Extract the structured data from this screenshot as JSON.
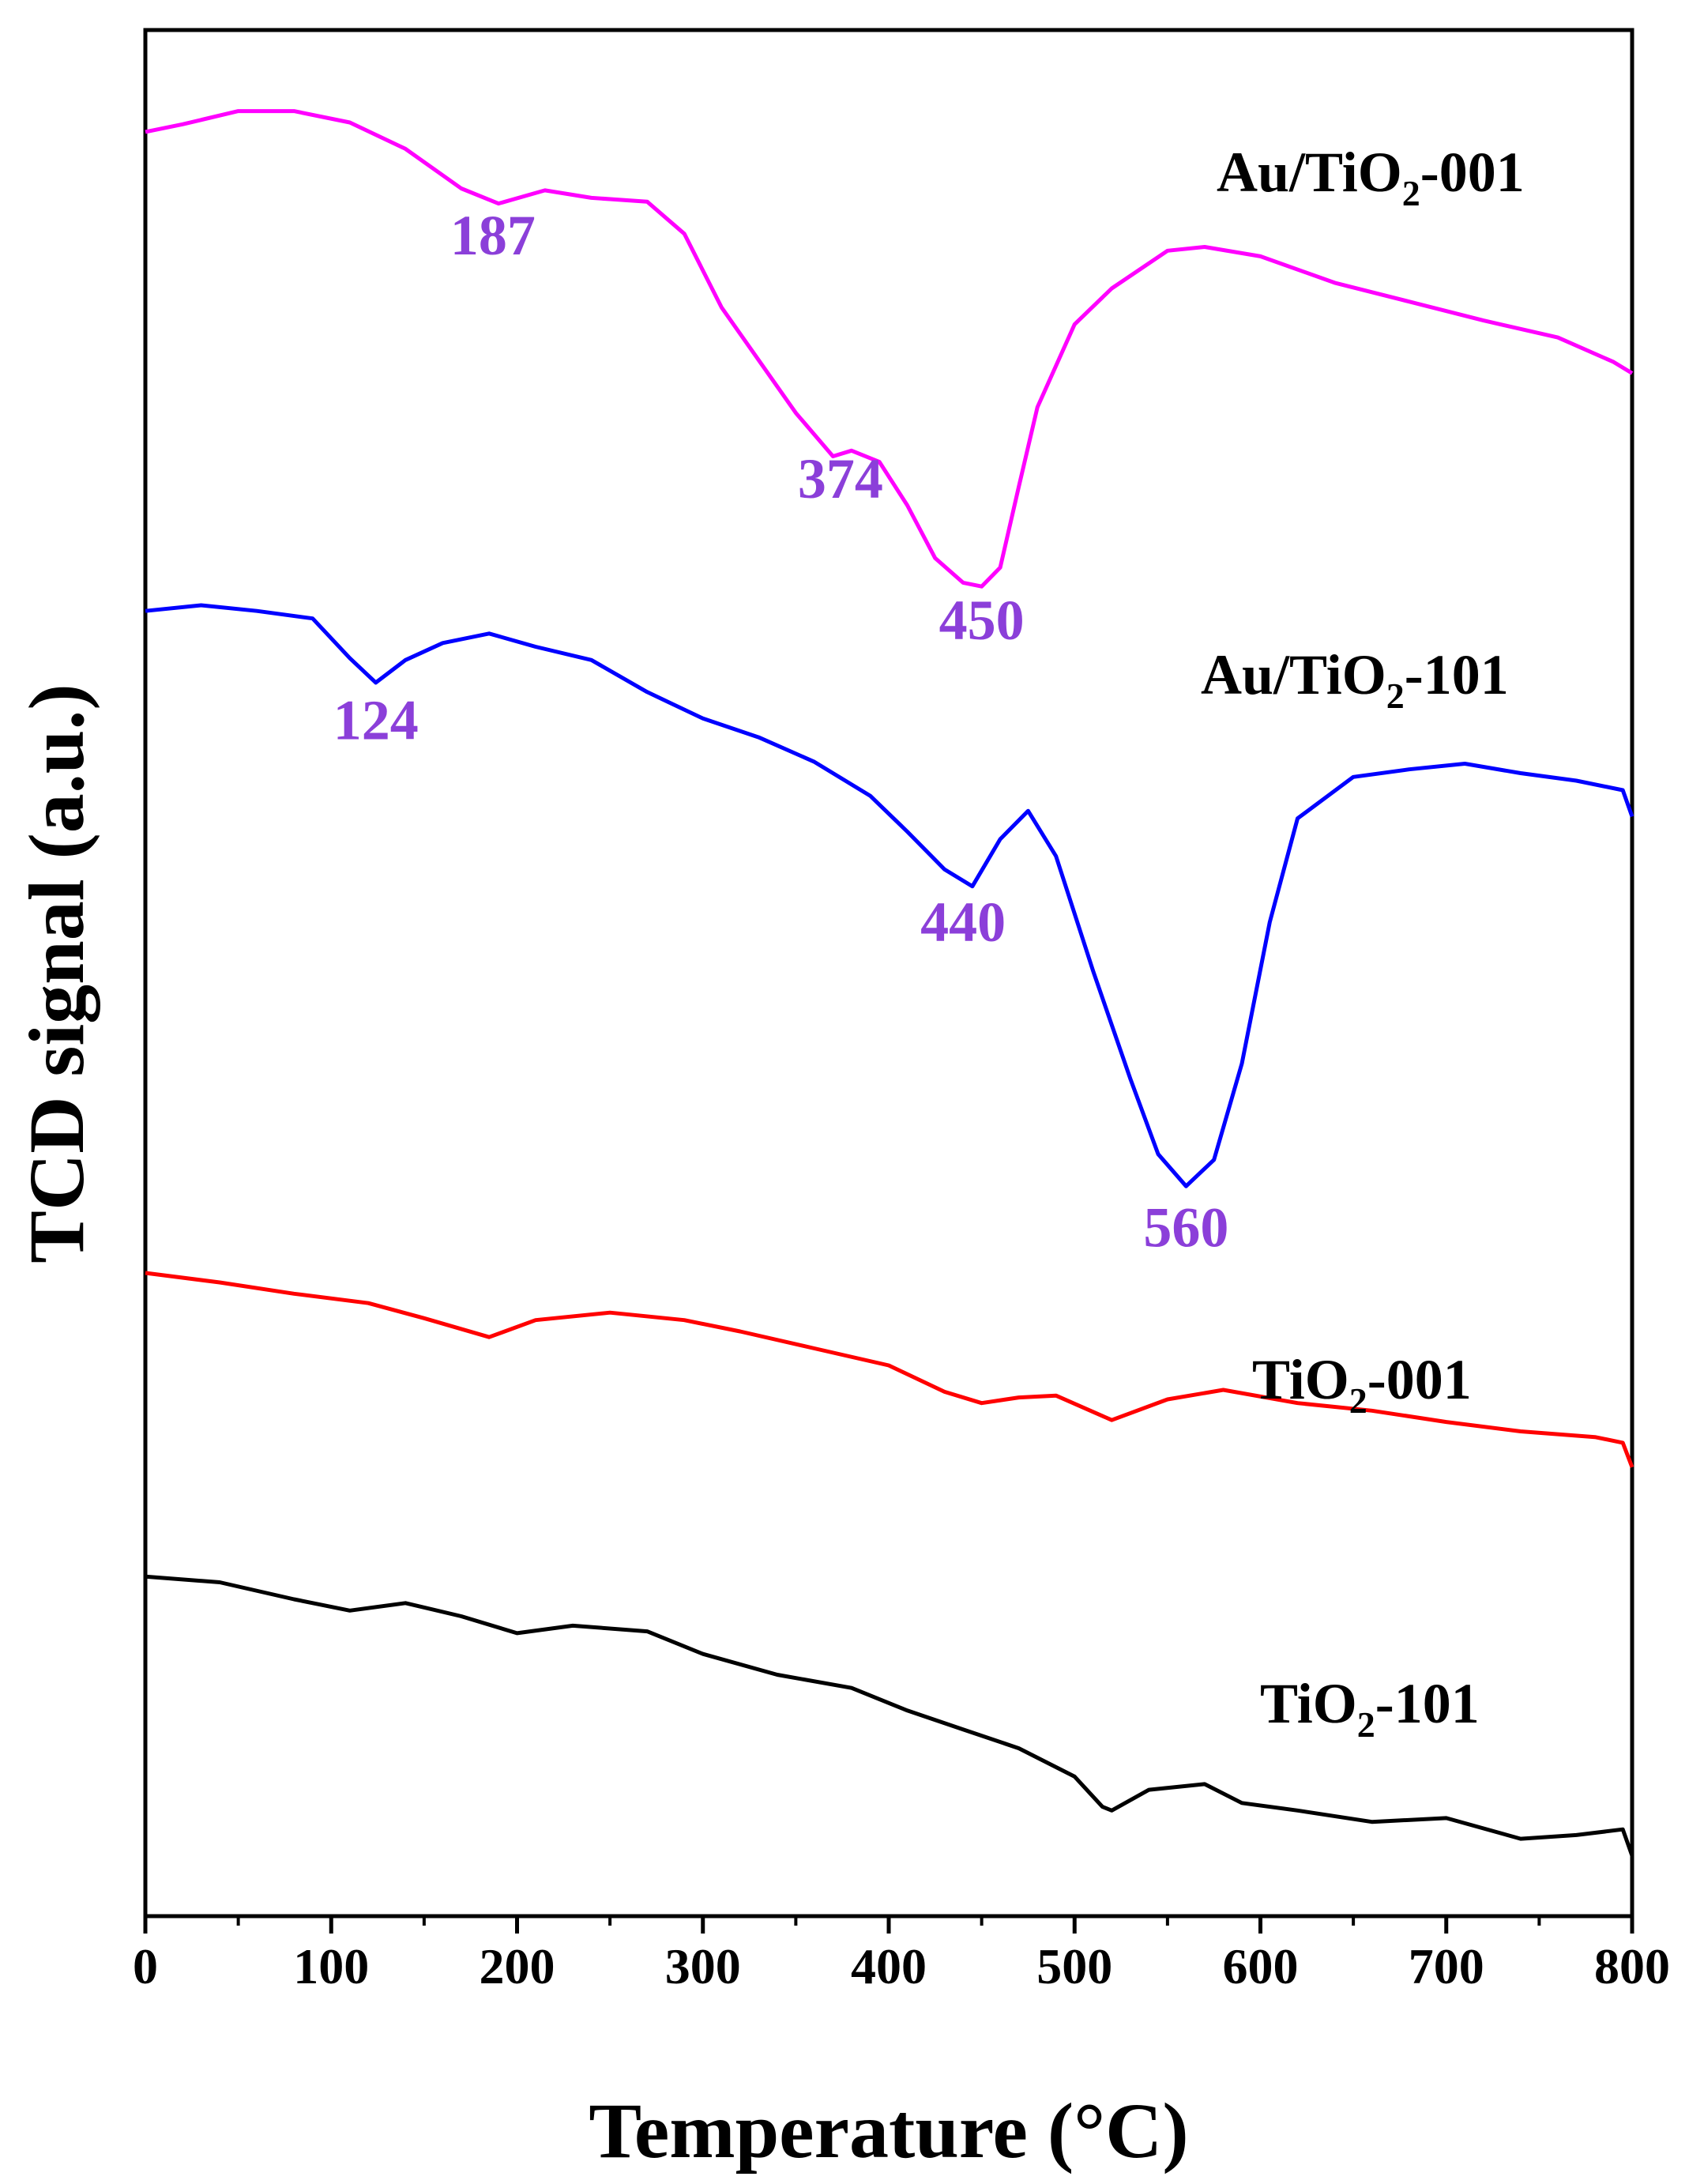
{
  "chart_data": {
    "type": "line",
    "title": "",
    "xlabel": "Temperature (°C)",
    "ylabel": "TCD signal (a.u.)",
    "xlim": [
      0,
      800
    ],
    "x_ticks": [
      "0",
      "100",
      "200",
      "300",
      "400",
      "500",
      "600",
      "700",
      "800"
    ],
    "y_ticks": [],
    "ylim": [
      0,
      100
    ],
    "grid": false,
    "legend": "inline labels at right of each curve",
    "peak_color": "#8b3fd9",
    "series": [
      {
        "name": "Au/TiO2-001",
        "label_main": "Au/TiO",
        "label_sub": "2",
        "label_tail": "-001",
        "color": "#ff00ff",
        "x": [
          0,
          20,
          50,
          80,
          110,
          140,
          170,
          190,
          215,
          240,
          270,
          290,
          310,
          330,
          350,
          370,
          380,
          395,
          410,
          425,
          440,
          450,
          460,
          470,
          480,
          500,
          520,
          550,
          570,
          600,
          640,
          680,
          720,
          760,
          790,
          800
        ],
        "y": [
          94.6,
          95.0,
          95.7,
          95.7,
          95.1,
          93.7,
          91.6,
          90.8,
          91.5,
          91.1,
          90.9,
          89.2,
          85.3,
          82.5,
          79.7,
          77.4,
          77.7,
          77.1,
          74.8,
          72.0,
          70.7,
          70.5,
          71.5,
          75.8,
          80.0,
          84.4,
          86.3,
          88.3,
          88.5,
          88.0,
          86.6,
          85.6,
          84.6,
          83.7,
          82.4,
          81.8
        ]
      },
      {
        "name": "Au/TiO2-101",
        "label_main": "Au/TiO",
        "label_sub": "2",
        "label_tail": "-101",
        "color": "#0000ff",
        "x": [
          0,
          30,
          60,
          90,
          110,
          124,
          140,
          160,
          185,
          210,
          240,
          270,
          300,
          330,
          360,
          390,
          410,
          430,
          445,
          460,
          475,
          490,
          510,
          530,
          545,
          560,
          575,
          590,
          605,
          620,
          650,
          680,
          710,
          740,
          770,
          795,
          800
        ],
        "y": [
          69.2,
          69.5,
          69.2,
          68.8,
          66.7,
          65.4,
          66.6,
          67.5,
          68.0,
          67.3,
          66.6,
          64.9,
          63.5,
          62.5,
          61.2,
          59.4,
          57.5,
          55.5,
          54.6,
          57.1,
          58.6,
          56.2,
          50.1,
          44.4,
          40.4,
          38.7,
          40.1,
          45.2,
          52.7,
          58.2,
          60.4,
          60.8,
          61.1,
          60.6,
          60.2,
          59.7,
          58.3
        ]
      },
      {
        "name": "TiO2-001",
        "label_main": "TiO",
        "label_sub": "2",
        "label_tail": "-001",
        "color": "#ff0000",
        "x": [
          0,
          40,
          80,
          120,
          150,
          185,
          210,
          250,
          290,
          320,
          360,
          400,
          430,
          450,
          470,
          490,
          520,
          550,
          580,
          620,
          660,
          700,
          740,
          780,
          795,
          800
        ],
        "y": [
          34.1,
          33.6,
          33.0,
          32.5,
          31.7,
          30.7,
          31.6,
          32.0,
          31.6,
          31.0,
          30.1,
          29.2,
          27.8,
          27.2,
          27.5,
          27.6,
          26.3,
          27.4,
          27.9,
          27.2,
          26.8,
          26.2,
          25.7,
          25.4,
          25.1,
          23.8
        ]
      },
      {
        "name": "TiO2-101",
        "label_main": "TiO",
        "label_sub": "2",
        "label_tail": "-101",
        "color": "#000000",
        "x": [
          0,
          40,
          80,
          110,
          140,
          170,
          200,
          230,
          270,
          300,
          340,
          380,
          410,
          440,
          470,
          500,
          515,
          520,
          540,
          570,
          590,
          620,
          660,
          700,
          740,
          770,
          795,
          800
        ],
        "y": [
          18.0,
          17.7,
          16.8,
          16.2,
          16.6,
          15.9,
          15.0,
          15.4,
          15.1,
          13.9,
          12.8,
          12.1,
          10.9,
          9.9,
          8.9,
          7.4,
          5.8,
          5.6,
          6.7,
          7.0,
          6.0,
          5.6,
          5.0,
          5.2,
          4.1,
          4.3,
          4.6,
          3.2
        ]
      }
    ],
    "annotations": [
      {
        "text": "187",
        "x": 187,
        "y": 88.1
      },
      {
        "text": "374",
        "x": 374,
        "y": 75.2
      },
      {
        "text": "450",
        "x": 450,
        "y": 67.7
      },
      {
        "text": "124",
        "x": 124,
        "y": 62.4
      },
      {
        "text": "440",
        "x": 440,
        "y": 51.7
      },
      {
        "text": "560",
        "x": 560,
        "y": 35.5
      }
    ]
  }
}
